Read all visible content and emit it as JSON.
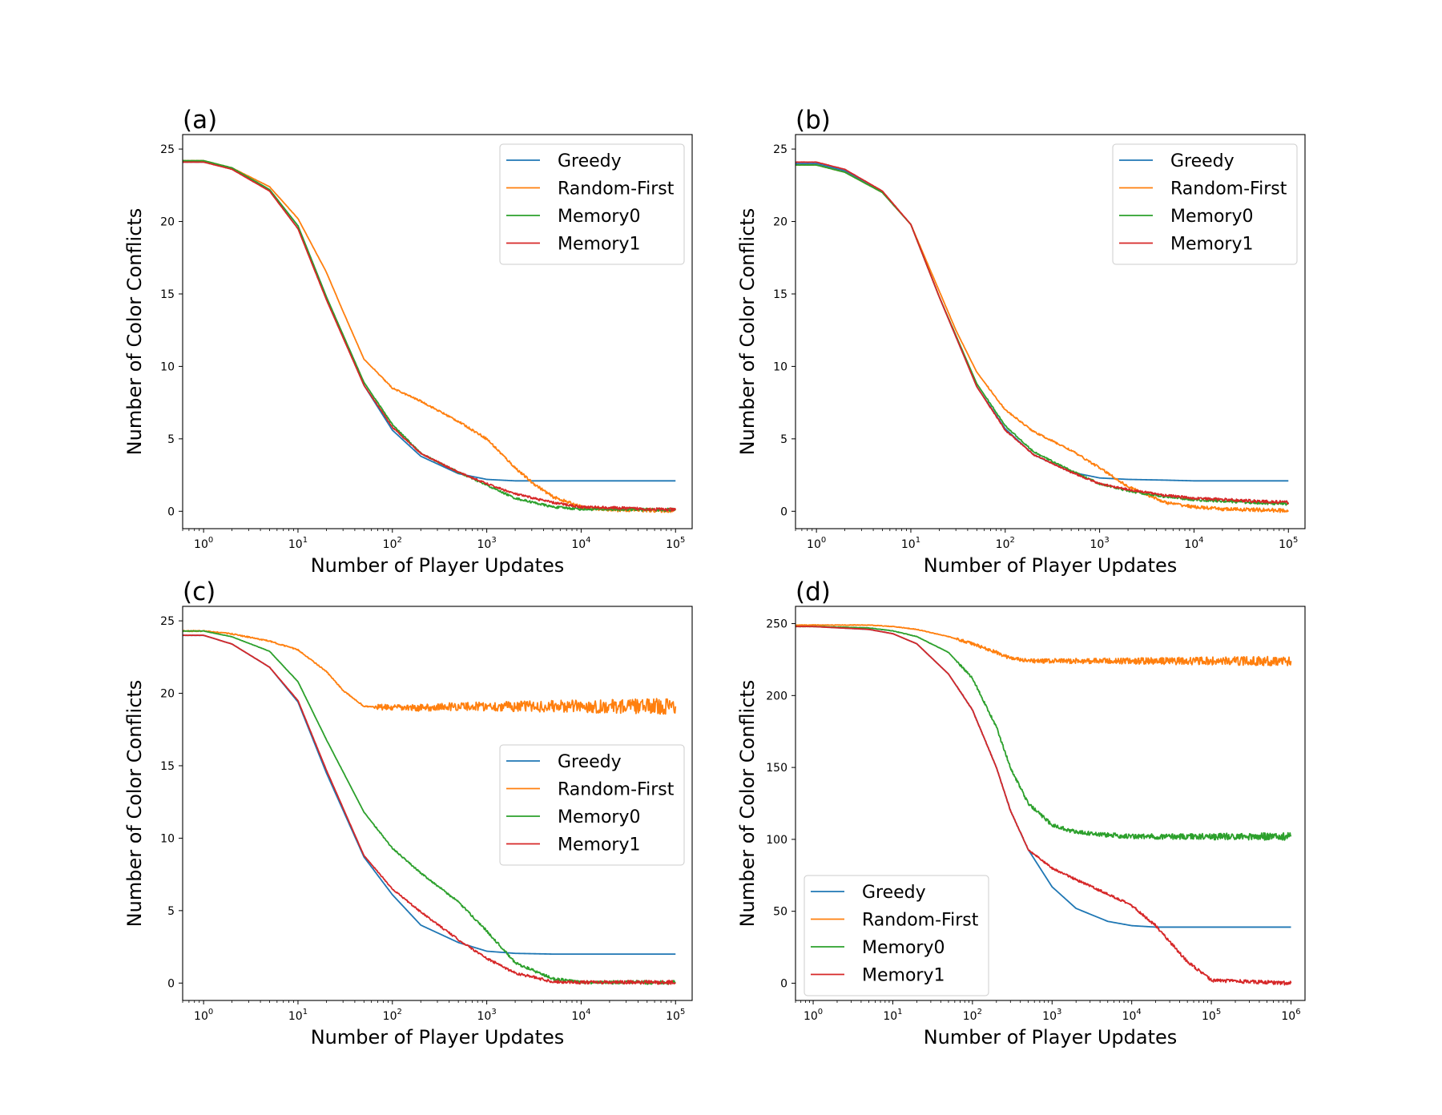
{
  "figure": {
    "colors": {
      "Greedy": "#1f77b4",
      "Random-First": "#ff7f0e",
      "Memory0": "#2ca02c",
      "Memory1": "#d62728"
    }
  },
  "chart_data": [
    {
      "id": "a",
      "type": "line",
      "panel_label": "(a)",
      "xlabel": "Number of Player Updates",
      "ylabel": "Number of Color Conflicts",
      "xscale": "log",
      "xlim": [
        0.6,
        150000
      ],
      "ylim": [
        -1.2,
        26
      ],
      "xticks": [
        {
          "v": 1,
          "e": "0"
        },
        {
          "v": 10,
          "e": "1"
        },
        {
          "v": 100,
          "e": "2"
        },
        {
          "v": 1000,
          "e": "3"
        },
        {
          "v": 10000,
          "e": "4"
        },
        {
          "v": 100000,
          "e": "5"
        }
      ],
      "yticks": [
        0,
        5,
        10,
        15,
        20,
        25
      ],
      "legend_position": "upper-right",
      "series": [
        {
          "name": "Greedy",
          "x": [
            0.6,
            1,
            2,
            5,
            10,
            20,
            50,
            100,
            200,
            500,
            1000,
            2000,
            5000,
            10000,
            100000
          ],
          "y": [
            24.1,
            24.1,
            23.7,
            22.2,
            19.7,
            14.8,
            8.7,
            5.6,
            3.8,
            2.6,
            2.2,
            2.1,
            2.1,
            2.1,
            2.1
          ],
          "noise": 0
        },
        {
          "name": "Random-First",
          "x": [
            0.6,
            1,
            2,
            5,
            10,
            20,
            30,
            50,
            100,
            200,
            500,
            1000,
            2000,
            3000,
            5000,
            10000,
            20000,
            100000
          ],
          "y": [
            24.2,
            24.2,
            23.7,
            22.4,
            20.2,
            16.5,
            13.8,
            10.5,
            8.5,
            7.6,
            6.2,
            5.0,
            3.0,
            2.0,
            1.0,
            0.3,
            0.1,
            0.05
          ],
          "noise": 0.05
        },
        {
          "name": "Memory0",
          "x": [
            0.6,
            1,
            2,
            5,
            10,
            20,
            50,
            100,
            200,
            500,
            1000,
            2000,
            5000,
            10000,
            100000
          ],
          "y": [
            24.2,
            24.2,
            23.7,
            22.2,
            19.7,
            14.8,
            8.9,
            6.0,
            4.0,
            2.7,
            1.8,
            0.9,
            0.3,
            0.15,
            0.1
          ],
          "noise": 0.04
        },
        {
          "name": "Memory1",
          "x": [
            0.6,
            1,
            2,
            5,
            10,
            20,
            50,
            100,
            200,
            500,
            1000,
            2000,
            5000,
            10000,
            100000
          ],
          "y": [
            24.1,
            24.1,
            23.6,
            22.1,
            19.5,
            14.6,
            8.7,
            5.8,
            4.0,
            2.7,
            1.9,
            1.2,
            0.6,
            0.3,
            0.1
          ],
          "noise": 0.04
        }
      ]
    },
    {
      "id": "b",
      "type": "line",
      "panel_label": "(b)",
      "xlabel": "Number of Player Updates",
      "ylabel": "Number of Color Conflicts",
      "xscale": "log",
      "xlim": [
        0.6,
        150000
      ],
      "ylim": [
        -1.2,
        26
      ],
      "xticks": [
        {
          "v": 1,
          "e": "0"
        },
        {
          "v": 10,
          "e": "1"
        },
        {
          "v": 100,
          "e": "2"
        },
        {
          "v": 1000,
          "e": "3"
        },
        {
          "v": 10000,
          "e": "4"
        },
        {
          "v": 100000,
          "e": "5"
        }
      ],
      "yticks": [
        0,
        5,
        10,
        15,
        20,
        25
      ],
      "legend_position": "upper-right",
      "series": [
        {
          "name": "Greedy",
          "x": [
            0.6,
            1,
            2,
            5,
            10,
            20,
            50,
            100,
            200,
            500,
            1000,
            2000,
            5000,
            10000,
            100000
          ],
          "y": [
            24.0,
            24.0,
            23.5,
            22.0,
            19.8,
            14.8,
            8.6,
            5.7,
            3.9,
            2.7,
            2.3,
            2.2,
            2.15,
            2.1,
            2.1
          ],
          "noise": 0
        },
        {
          "name": "Random-First",
          "x": [
            0.6,
            1,
            2,
            5,
            10,
            20,
            30,
            50,
            100,
            200,
            500,
            1000,
            2000,
            5000,
            10000,
            20000,
            100000
          ],
          "y": [
            23.9,
            23.9,
            23.4,
            22.0,
            19.8,
            15.2,
            12.5,
            9.6,
            7.0,
            5.5,
            4.2,
            3.0,
            1.7,
            0.6,
            0.3,
            0.15,
            0.05
          ],
          "noise": 0.05
        },
        {
          "name": "Memory0",
          "x": [
            0.6,
            1,
            2,
            5,
            10,
            20,
            50,
            100,
            200,
            500,
            1000,
            2000,
            5000,
            10000,
            100000
          ],
          "y": [
            23.9,
            23.9,
            23.4,
            22.0,
            19.8,
            14.8,
            8.8,
            5.9,
            4.1,
            2.8,
            1.9,
            1.4,
            1.0,
            0.8,
            0.5
          ],
          "noise": 0.04
        },
        {
          "name": "Memory1",
          "x": [
            0.6,
            1,
            2,
            5,
            10,
            20,
            50,
            100,
            200,
            500,
            1000,
            2000,
            5000,
            10000,
            100000
          ],
          "y": [
            24.1,
            24.1,
            23.6,
            22.1,
            19.8,
            14.8,
            8.6,
            5.6,
            3.9,
            2.7,
            1.9,
            1.5,
            1.1,
            0.9,
            0.6
          ],
          "noise": 0.04
        }
      ]
    },
    {
      "id": "c",
      "type": "line",
      "panel_label": "(c)",
      "xlabel": "Number of Player Updates",
      "ylabel": "Number of Color Conflicts",
      "xscale": "log",
      "xlim": [
        0.6,
        150000
      ],
      "ylim": [
        -1.2,
        26
      ],
      "xticks": [
        {
          "v": 1,
          "e": "0"
        },
        {
          "v": 10,
          "e": "1"
        },
        {
          "v": 100,
          "e": "2"
        },
        {
          "v": 1000,
          "e": "3"
        },
        {
          "v": 10000,
          "e": "4"
        },
        {
          "v": 100000,
          "e": "5"
        }
      ],
      "yticks": [
        0,
        5,
        10,
        15,
        20,
        25
      ],
      "legend_position": "center-right",
      "series": [
        {
          "name": "Greedy",
          "x": [
            0.6,
            1,
            2,
            5,
            10,
            20,
            50,
            100,
            200,
            500,
            1000,
            2000,
            5000,
            10000,
            100000
          ],
          "y": [
            24.0,
            24.0,
            23.4,
            21.8,
            19.4,
            14.5,
            8.7,
            6.1,
            4.0,
            2.8,
            2.2,
            2.05,
            2.0,
            2.0,
            2.0
          ],
          "noise": 0
        },
        {
          "name": "Random-First",
          "x": [
            0.6,
            1,
            2,
            5,
            10,
            20,
            30,
            50,
            100,
            200,
            500,
            1000,
            10000,
            100000
          ],
          "y": [
            24.3,
            24.3,
            24.1,
            23.6,
            23.0,
            21.5,
            20.2,
            19.1,
            19.0,
            19.0,
            19.1,
            19.1,
            19.1,
            19.1
          ],
          "noise": 0.2
        },
        {
          "name": "Memory0",
          "x": [
            0.6,
            1,
            2,
            5,
            10,
            20,
            50,
            100,
            200,
            500,
            1000,
            2000,
            5000,
            10000,
            100000
          ],
          "y": [
            24.3,
            24.3,
            23.9,
            22.9,
            20.8,
            16.8,
            11.8,
            9.3,
            7.6,
            5.6,
            3.6,
            1.4,
            0.3,
            0.05,
            0.05
          ],
          "noise": 0.05
        },
        {
          "name": "Memory1",
          "x": [
            0.6,
            1,
            2,
            5,
            10,
            20,
            50,
            100,
            200,
            500,
            1000,
            2000,
            5000,
            10000,
            100000
          ],
          "y": [
            24.0,
            24.0,
            23.4,
            21.8,
            19.5,
            14.7,
            8.8,
            6.5,
            4.9,
            3.0,
            1.7,
            0.7,
            0.1,
            0.05,
            0.05
          ],
          "noise": 0.05
        }
      ]
    },
    {
      "id": "d",
      "type": "line",
      "panel_label": "(d)",
      "xlabel": "Number of Player Updates",
      "ylabel": "Number of Color Conflicts",
      "xscale": "log",
      "xlim": [
        0.6,
        1500000
      ],
      "ylim": [
        -12,
        262
      ],
      "xticks": [
        {
          "v": 1,
          "e": "0"
        },
        {
          "v": 10,
          "e": "1"
        },
        {
          "v": 100,
          "e": "2"
        },
        {
          "v": 1000,
          "e": "3"
        },
        {
          "v": 10000,
          "e": "4"
        },
        {
          "v": 100000,
          "e": "5"
        },
        {
          "v": 1000000,
          "e": "6"
        }
      ],
      "yticks": [
        0,
        50,
        100,
        150,
        200,
        250
      ],
      "legend_position": "lower-left",
      "series": [
        {
          "name": "Greedy",
          "x": [
            0.6,
            1,
            5,
            10,
            20,
            50,
            100,
            200,
            300,
            500,
            1000,
            2000,
            5000,
            10000,
            20000,
            100000,
            1000000
          ],
          "y": [
            248,
            248,
            246,
            243,
            236,
            215,
            190,
            150,
            120,
            93,
            67,
            52,
            43,
            40,
            39,
            39,
            39
          ],
          "noise": 0
        },
        {
          "name": "Random-First",
          "x": [
            0.6,
            1,
            5,
            10,
            20,
            50,
            100,
            200,
            300,
            500,
            1000,
            10000,
            100000,
            1000000
          ],
          "y": [
            249,
            249,
            249,
            248,
            246,
            241,
            236,
            230,
            226,
            224,
            224,
            224,
            224,
            224
          ],
          "noise": 1.0
        },
        {
          "name": "Memory0",
          "x": [
            0.6,
            1,
            5,
            10,
            20,
            50,
            100,
            200,
            300,
            500,
            1000,
            2000,
            5000,
            10000,
            100000,
            1000000
          ],
          "y": [
            248,
            248,
            247,
            245,
            241,
            230,
            212,
            178,
            150,
            125,
            110,
            105,
            103,
            102,
            102,
            102
          ],
          "noise": 0.8
        },
        {
          "name": "Memory1",
          "x": [
            0.6,
            1,
            5,
            10,
            20,
            50,
            100,
            200,
            300,
            500,
            1000,
            2000,
            5000,
            10000,
            20000,
            50000,
            100000,
            1000000
          ],
          "y": [
            248,
            248,
            246,
            243,
            236,
            215,
            190,
            150,
            120,
            93,
            80,
            72,
            62,
            54,
            40,
            15,
            2,
            0
          ],
          "noise": 0.4
        }
      ]
    }
  ]
}
